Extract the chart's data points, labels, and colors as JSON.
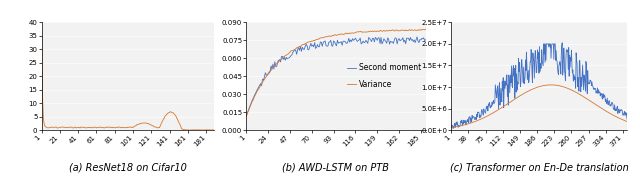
{
  "fig_width": 6.4,
  "fig_height": 1.86,
  "dpi": 100,
  "subplot1": {
    "title": "(a) ResNet18 on Cifar10",
    "title_below": true,
    "xlabel_ticks": [
      1,
      21,
      41,
      61,
      81,
      101,
      121,
      141,
      161,
      181
    ],
    "ylim": [
      0,
      40
    ],
    "yticks": [
      0,
      5,
      10,
      15,
      20,
      25,
      30,
      35,
      40
    ],
    "line_color": "#d47830"
  },
  "subplot2": {
    "title": "(b) AWD-LSTM on PTB",
    "title_below": true,
    "xlabel_ticks": [
      1,
      24,
      47,
      70,
      93,
      116,
      139,
      162,
      185
    ],
    "ylim": [
      0,
      0.09
    ],
    "yticks": [
      0,
      0.015,
      0.03,
      0.045,
      0.06,
      0.075,
      0.09
    ],
    "line1_color": "#4472c4",
    "line1_label": "Second moment",
    "line2_color": "#d47830",
    "line2_label": "Variance"
  },
  "subplot3": {
    "title": "(c) Transformer on En-De translation",
    "title_below": true,
    "xlabel_ticks": [
      1,
      38,
      75,
      112,
      149,
      186,
      223,
      260,
      297,
      334,
      371
    ],
    "ylim": [
      0,
      25000000.0
    ],
    "yticks": [
      0,
      5000000.0,
      10000000.0,
      15000000.0,
      20000000.0,
      25000000.0
    ],
    "line1_color": "#4472c4",
    "line2_color": "#d47830"
  },
  "line_width": 0.6,
  "title_fontsize": 7,
  "tick_fontsize": 5.0,
  "legend_fontsize": 5.5,
  "bg_color": "#f2f2f2"
}
